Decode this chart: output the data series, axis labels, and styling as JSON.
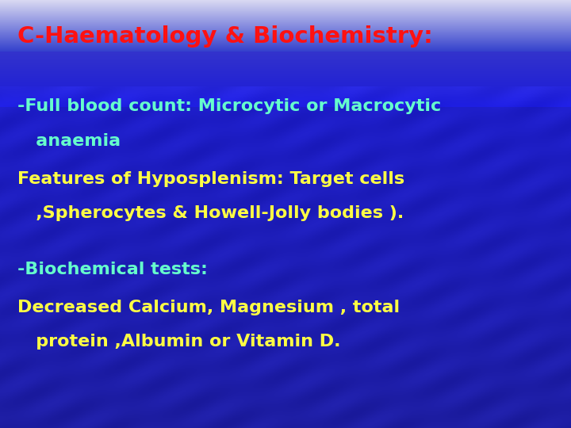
{
  "title": "C-Haematology & Biochemistry:",
  "title_color": "#ff1111",
  "line1": "-Full blood count: Microcytic or Macrocytic",
  "line2": "   anaemia",
  "line3": "Features of Hyposplenism: Target cells",
  "line4": "   ,Spherocytes & Howell-Jolly bodies ).",
  "line5": "-Biochemical tests:",
  "line6": "Decreased Calcium, Magnesium , total",
  "line7": "   protein ,Albumin or Vitamin D.",
  "cyan_color": "#66ffcc",
  "yellow_color": "#ffff44",
  "figsize": [
    7.2,
    5.4
  ],
  "dpi": 100
}
